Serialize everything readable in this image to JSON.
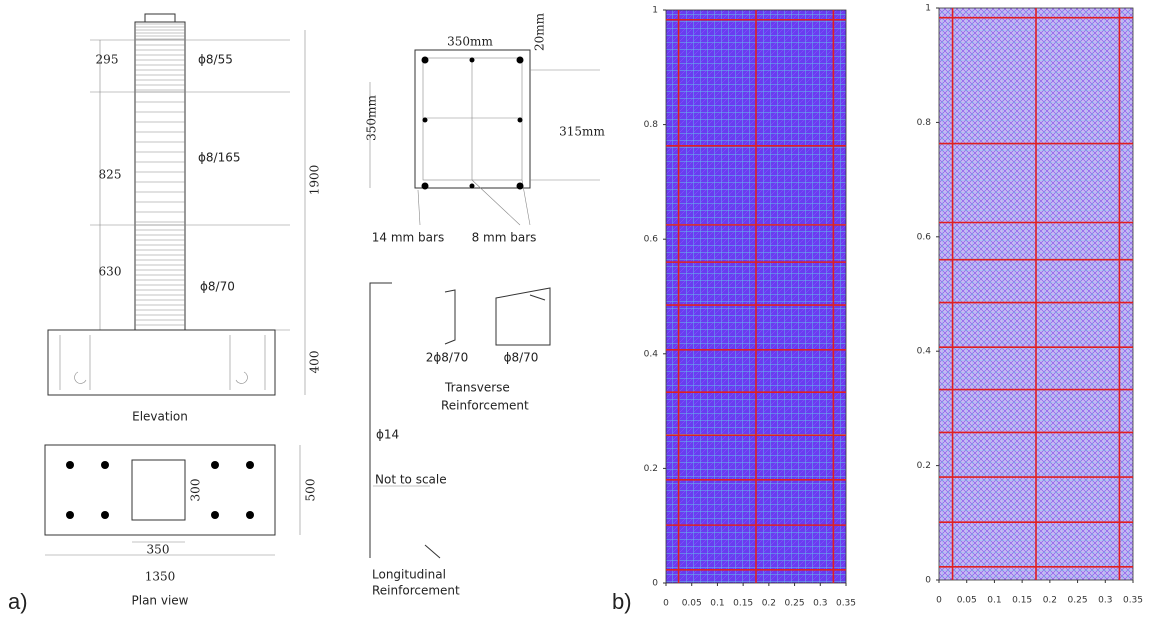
{
  "panel_a": {
    "label": "a)",
    "elevation": {
      "title": "Elevation",
      "segments": [
        {
          "length": "295",
          "stirrups": "ϕ8/55"
        },
        {
          "length": "825",
          "stirrups": "ϕ8/165"
        },
        {
          "length": "630",
          "stirrups": "ϕ8/70"
        }
      ],
      "height": "1900",
      "footing": "400"
    },
    "plan": {
      "title": "Plan view",
      "width": "1350",
      "depth": "500",
      "column_width": "350",
      "column_depth": "300"
    },
    "section": {
      "width": "350mm",
      "depth": "350mm",
      "inner": "315mm",
      "cover": "20mm",
      "bars": [
        "14 mm bars",
        "8 mm bars"
      ]
    },
    "transverse": {
      "labels": [
        "2ϕ8/70",
        "ϕ8/70"
      ],
      "title": [
        "Transverse",
        "Reinforcement"
      ]
    },
    "longitudinal": {
      "bar": "ϕ14",
      "note": "Not to scale",
      "title": [
        "Longitudinal",
        "Reinforcement"
      ]
    }
  },
  "panel_b": {
    "label": "b)",
    "plots": [
      {
        "xlim": [
          0,
          0.35
        ],
        "ylim": [
          0,
          1
        ],
        "xticks": [
          0,
          0.05,
          0.1,
          0.15,
          0.2,
          0.25,
          0.3,
          0.35
        ],
        "yticks": [
          0,
          0.2,
          0.4,
          0.6,
          0.8,
          1
        ]
      },
      {
        "xlim": [
          0,
          0.35
        ],
        "ylim": [
          0,
          1
        ],
        "xticks": [
          0,
          0.05,
          0.1,
          0.15,
          0.2,
          0.25,
          0.3,
          0.35
        ],
        "yticks": [
          0,
          0.2,
          0.4,
          0.6,
          0.8,
          1
        ]
      }
    ]
  }
}
